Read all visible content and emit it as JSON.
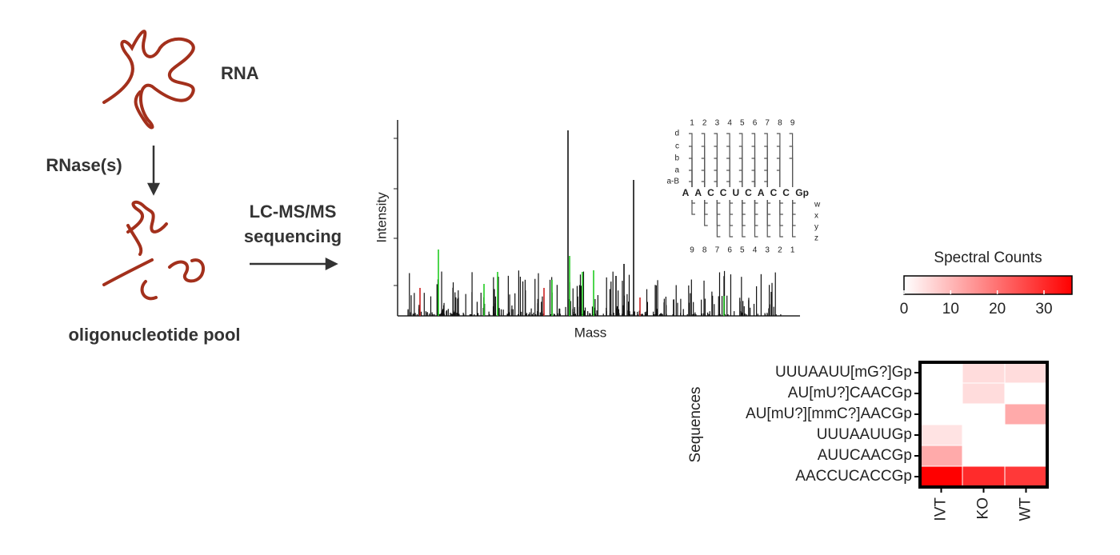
{
  "workflow": {
    "rna_label": "RNA",
    "enzyme_label": "RNase(s)",
    "pool_label": "oligonucleotide pool",
    "method_label": [
      "LC-MS/MS",
      "sequencing"
    ]
  },
  "spectrum": {
    "y_label": "Intensity",
    "x_label": "Mass",
    "inset": {
      "top_numbers": [
        "1",
        "2",
        "3",
        "4",
        "5",
        "6",
        "7",
        "8",
        "9"
      ],
      "left_letters": [
        "d",
        "c",
        "b",
        "a",
        "a-B"
      ],
      "sequence": [
        "A",
        "A",
        "C",
        "C",
        "U",
        "C",
        "A",
        "C",
        "C",
        "Gp"
      ],
      "right_letters": [
        "w",
        "x",
        "y",
        "z"
      ],
      "bottom_numbers": [
        "9",
        "8",
        "7",
        "6",
        "5",
        "4",
        "3",
        "2",
        "1"
      ]
    }
  },
  "chart_data": {
    "type": "heatmap",
    "y_label": "Sequences",
    "rows": [
      "UUUAAUU[mG?]Gp",
      "AU[mU?]CAACGp",
      "AU[mU?][mmC?]AACGp",
      "UUUAAUUGp",
      "AUUCAACGp",
      "AACCUCACCGp"
    ],
    "columns": [
      "IVT",
      "KO",
      "WT"
    ],
    "values": [
      [
        0,
        5,
        5
      ],
      [
        0,
        5,
        0
      ],
      [
        0,
        0,
        12
      ],
      [
        4,
        0,
        0
      ],
      [
        12,
        0,
        0
      ],
      [
        36,
        30,
        28
      ]
    ],
    "colorbar_title": "Spectral Counts",
    "clim": [
      0,
      36
    ],
    "cticks": [
      0,
      10,
      20,
      30
    ],
    "colors": [
      "#ffffff",
      "#ff0000"
    ]
  }
}
